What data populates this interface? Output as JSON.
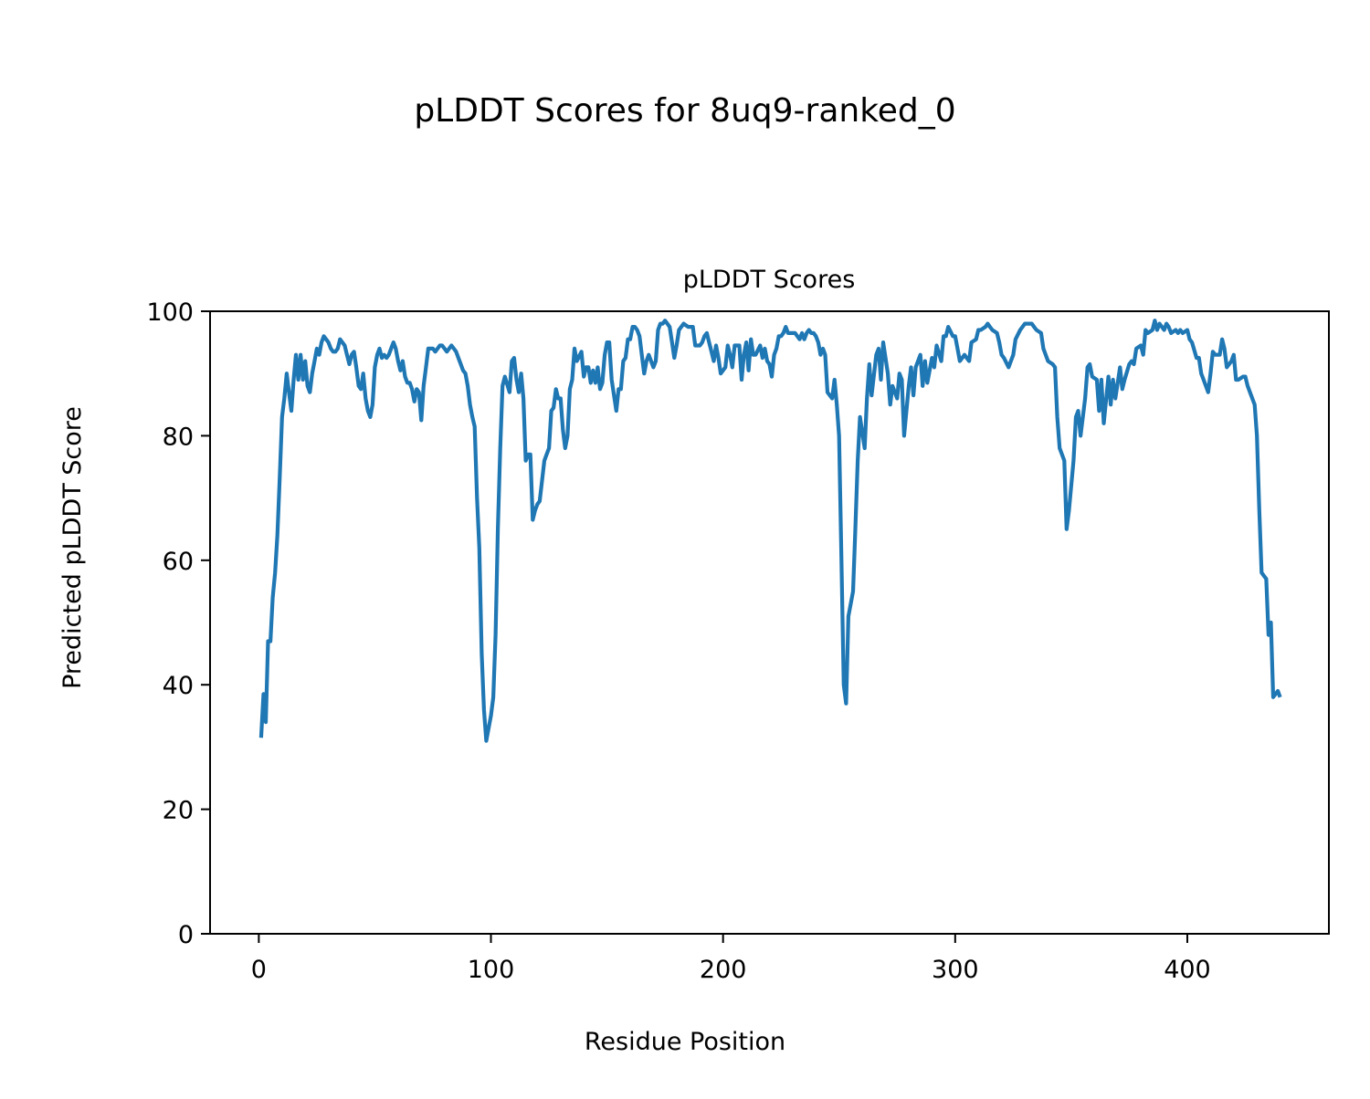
{
  "chart_data": {
    "type": "line",
    "suptitle": "pLDDT Scores for 8uq9-ranked_0",
    "title": "pLDDT Scores",
    "xlabel": "Residue Position",
    "ylabel": "Predicted pLDDT Score",
    "xlim": [
      -21,
      461
    ],
    "ylim": [
      0,
      100
    ],
    "xticks": [
      0,
      100,
      200,
      300,
      400
    ],
    "yticks": [
      0,
      20,
      40,
      60,
      80,
      100
    ],
    "grid": false,
    "line_color": "#1f77b4",
    "series": [
      {
        "name": "pLDDT",
        "x": [
          1,
          2,
          3,
          4,
          5,
          6,
          7,
          8,
          9,
          10,
          11,
          12,
          13,
          14,
          15,
          16,
          17,
          18,
          19,
          20,
          21,
          22,
          23,
          24,
          25,
          26,
          27,
          28,
          29,
          30,
          31,
          32,
          33,
          34,
          35,
          36,
          37,
          38,
          39,
          40,
          41,
          42,
          43,
          44,
          45,
          46,
          47,
          48,
          49,
          50,
          51,
          52,
          53,
          54,
          55,
          56,
          57,
          58,
          59,
          60,
          61,
          62,
          63,
          64,
          65,
          66,
          67,
          68,
          69,
          70,
          71,
          72,
          73,
          74,
          75,
          76,
          77,
          78,
          79,
          80,
          81,
          82,
          83,
          84,
          85,
          86,
          87,
          88,
          89,
          90,
          91,
          92,
          93,
          94,
          95,
          96,
          97,
          98,
          100,
          101,
          102,
          103,
          104,
          105,
          106,
          108,
          109,
          110,
          111,
          112,
          113,
          114,
          115,
          116,
          117,
          118,
          119,
          120,
          121,
          123,
          124,
          125,
          126,
          127,
          128,
          129,
          130,
          131,
          132,
          133,
          134,
          135,
          136,
          137,
          139,
          140,
          141,
          142,
          143,
          144,
          145,
          146,
          147,
          148,
          149,
          150,
          151,
          152,
          154,
          155,
          156,
          157,
          158,
          159,
          160,
          161,
          162,
          163,
          164,
          165,
          166,
          167,
          168,
          170,
          171,
          172,
          173,
          174,
          175,
          176,
          177,
          178,
          179,
          180,
          181,
          182,
          183,
          185,
          186,
          187,
          188,
          189,
          190,
          191,
          192,
          193,
          194,
          195,
          196,
          197,
          198,
          199,
          201,
          202,
          203,
          204,
          205,
          206,
          207,
          208,
          209,
          210,
          211,
          212,
          213,
          214,
          216,
          217,
          218,
          219,
          220,
          221,
          222,
          223,
          224,
          225,
          226,
          227,
          228,
          229,
          231,
          232,
          233,
          234,
          235,
          236,
          237,
          238,
          239,
          240,
          241,
          242,
          243,
          244,
          245,
          247,
          248,
          249,
          250,
          251,
          252,
          253,
          254,
          256,
          257,
          258,
          259,
          261,
          262,
          263,
          264,
          266,
          267,
          268,
          269,
          271,
          272,
          273,
          275,
          276,
          277,
          278,
          280,
          281,
          282,
          283,
          285,
          286,
          287,
          288,
          290,
          291,
          292,
          294,
          295,
          296,
          297,
          299,
          300,
          301,
          302,
          304,
          305,
          306,
          307,
          309,
          310,
          311,
          313,
          314,
          315,
          316,
          318,
          319,
          320,
          321,
          323,
          324,
          325,
          326,
          328,
          329,
          330,
          332,
          333,
          334,
          335,
          337,
          338,
          339,
          340,
          342,
          343,
          344,
          345,
          347,
          348,
          349,
          351,
          352,
          353,
          354,
          356,
          357,
          358,
          359,
          361,
          362,
          363,
          364,
          366,
          367,
          368,
          369,
          371,
          372,
          373,
          375,
          376,
          377,
          378,
          380,
          381,
          382,
          383,
          385,
          386,
          387,
          388,
          390,
          391,
          392,
          393,
          395,
          396,
          397,
          398,
          400,
          401,
          402,
          404,
          405,
          406,
          407,
          409,
          410,
          411,
          412,
          414,
          415,
          416,
          417,
          419,
          420,
          421,
          422,
          424,
          425,
          426,
          427,
          429,
          430,
          431,
          432,
          434,
          435,
          436,
          437,
          439,
          440
        ],
        "y": [
          31.5,
          38.5,
          34,
          47,
          47,
          54,
          58,
          64,
          73,
          83,
          86,
          90,
          87,
          84,
          89,
          93,
          89,
          93,
          89,
          92,
          88,
          87,
          90,
          92,
          94,
          93,
          95,
          96,
          95.5,
          95,
          94,
          93.5,
          93.5,
          94,
          95.5,
          95,
          94.5,
          93,
          91.5,
          93,
          93.5,
          91,
          88,
          87.5,
          90,
          86,
          84,
          83,
          85,
          91,
          93,
          94,
          92.5,
          93,
          92.5,
          93,
          94,
          95,
          94,
          92,
          90.5,
          92,
          89.5,
          88.5,
          88.5,
          87.5,
          85.5,
          87.5,
          87,
          82.5,
          88,
          91,
          94,
          94,
          94,
          93.5,
          94,
          94.5,
          94.5,
          94,
          93.5,
          94,
          94.5,
          94,
          93.5,
          92.5,
          91.5,
          90.5,
          90,
          88,
          85,
          83,
          81.5,
          70,
          62,
          45,
          36,
          31,
          35,
          38,
          48,
          65,
          78,
          88,
          89.5,
          87,
          92,
          92.5,
          89,
          87,
          90,
          86,
          76,
          77,
          77,
          66.5,
          68,
          69,
          69.5,
          76,
          77,
          78,
          84,
          84.5,
          87.5,
          86,
          86,
          81,
          78,
          80,
          87.5,
          89,
          94,
          92,
          93.5,
          89.5,
          91,
          91,
          88.5,
          90.5,
          88.5,
          91,
          87.5,
          88.5,
          93,
          95,
          95,
          89,
          84,
          87.5,
          87.5,
          92,
          92.5,
          95.5,
          95.5,
          97.5,
          97.5,
          97,
          96,
          93,
          90,
          92,
          93,
          91,
          92,
          97,
          98,
          98,
          98.5,
          98,
          97.5,
          95,
          92.5,
          94.5,
          97,
          97.5,
          98,
          97.5,
          97.5,
          97.5,
          94.5,
          94.5,
          94.5,
          95,
          96,
          96.5,
          95,
          93.5,
          92,
          94.5,
          92.5,
          90,
          91,
          94.5,
          93,
          91,
          94.5,
          94.5,
          94.5,
          89,
          93,
          95,
          90.5,
          95.5,
          93,
          93,
          94.5,
          92.5,
          94,
          92,
          91.5,
          89.5,
          93,
          94,
          96,
          96,
          96.5,
          97.5,
          96.5,
          96.5,
          96.5,
          96,
          95.5,
          96.5,
          95.5,
          96.5,
          97,
          96.5,
          96.5,
          96,
          95,
          93,
          94,
          93,
          87,
          86,
          89,
          85,
          80,
          60,
          40,
          37,
          51,
          55,
          65,
          76,
          83,
          78,
          86,
          91.5,
          86.5,
          93,
          94,
          89,
          95,
          90,
          85,
          88,
          86,
          90,
          89,
          80,
          88,
          91,
          86.5,
          91,
          93,
          88,
          92,
          88.5,
          92.5,
          91,
          94.5,
          92,
          96,
          96,
          97.5,
          96,
          96,
          94,
          92,
          93,
          92.5,
          92,
          95,
          95.5,
          97,
          97,
          97.5,
          98,
          97.5,
          97,
          96.5,
          95,
          93,
          92.5,
          91,
          92,
          93,
          95.5,
          97,
          97.5,
          98,
          98,
          98,
          97.5,
          97,
          96.5,
          94,
          93,
          92,
          91.5,
          91,
          83,
          78,
          76,
          65,
          68,
          76,
          83,
          84,
          80,
          86,
          91,
          91.5,
          89.5,
          89,
          84,
          89,
          82,
          89.5,
          85,
          89,
          86,
          91,
          87.5,
          89,
          91.5,
          92,
          91.5,
          94,
          94.5,
          93,
          97,
          96.5,
          97,
          98.5,
          97,
          98,
          97,
          98,
          97.5,
          96.5,
          97,
          96.5,
          97,
          96.5,
          97,
          95.5,
          95,
          92.5,
          92.5,
          90,
          89,
          87,
          90,
          93.5,
          93,
          93,
          95.5,
          94,
          91,
          92,
          93,
          89,
          89,
          89.5,
          89.5,
          88,
          87,
          85,
          80,
          68,
          58,
          57,
          48,
          50,
          38,
          39,
          38
        ]
      }
    ]
  }
}
